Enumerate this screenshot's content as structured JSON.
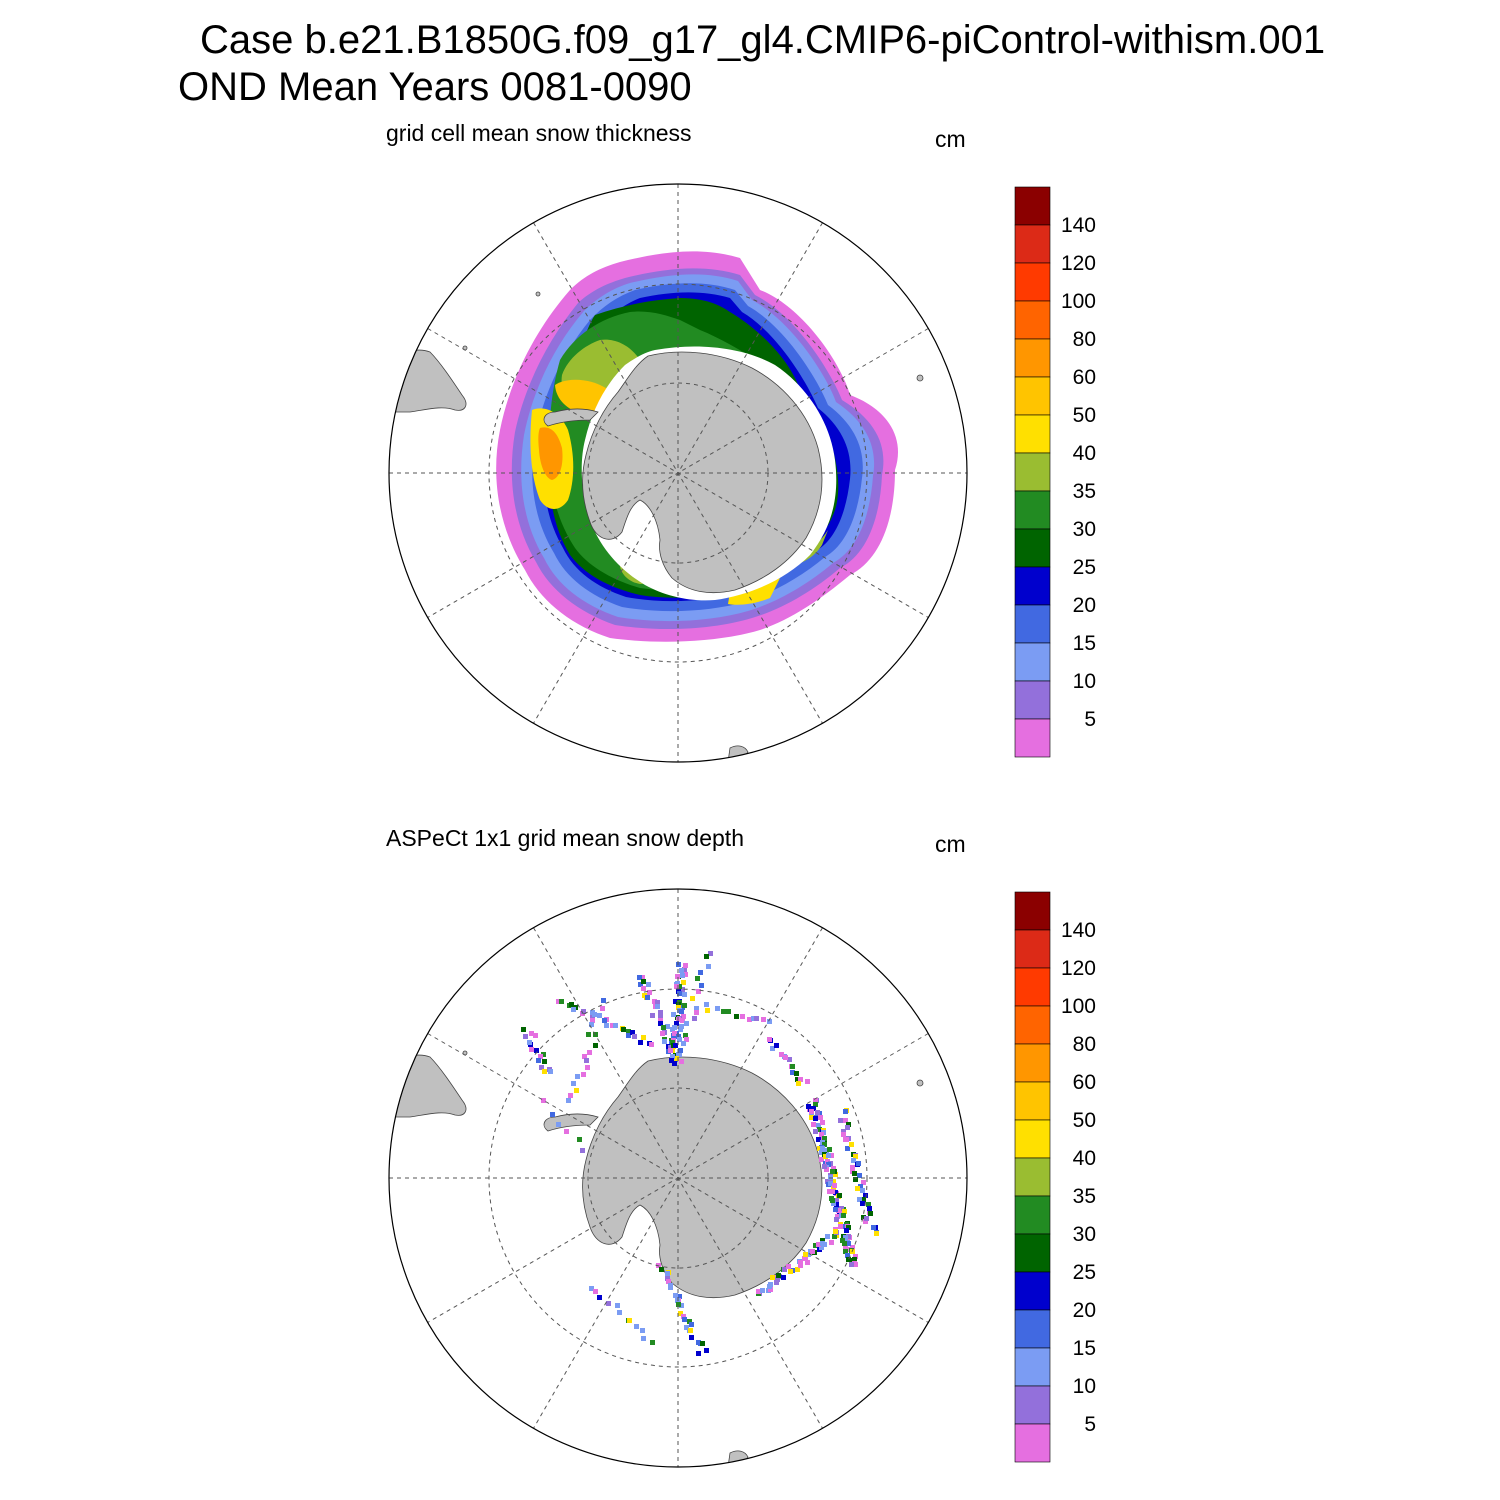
{
  "title": {
    "case_line": "Case b.e21.B1850G.f09_g17_gl4.CMIP6-piControl-withism.001",
    "period_line": "OND Mean   Years 0081-0090"
  },
  "panels": [
    {
      "id": "model",
      "title": "grid cell mean snow thickness",
      "units": "cm"
    },
    {
      "id": "obs",
      "title": "ASPeCt 1x1 grid mean snow depth",
      "units": "cm"
    }
  ],
  "colorbar": {
    "labels": [
      "140",
      "120",
      "100",
      "80",
      "60",
      "50",
      "40",
      "35",
      "30",
      "25",
      "20",
      "15",
      "10",
      "5"
    ],
    "colors": [
      "#8b0000",
      "#dc2a17",
      "#ff3a00",
      "#ff6400",
      "#ff9600",
      "#ffc400",
      "#ffe000",
      "#9abd31",
      "#228b22",
      "#006400",
      "#0000cd",
      "#4169e1",
      "#7b9cf3",
      "#9370db",
      "#e56fe0"
    ]
  },
  "map_colors": {
    "land": "#c0c0c0",
    "ocean": "#ffffff",
    "ice_edge_white": "#ffffff"
  }
}
